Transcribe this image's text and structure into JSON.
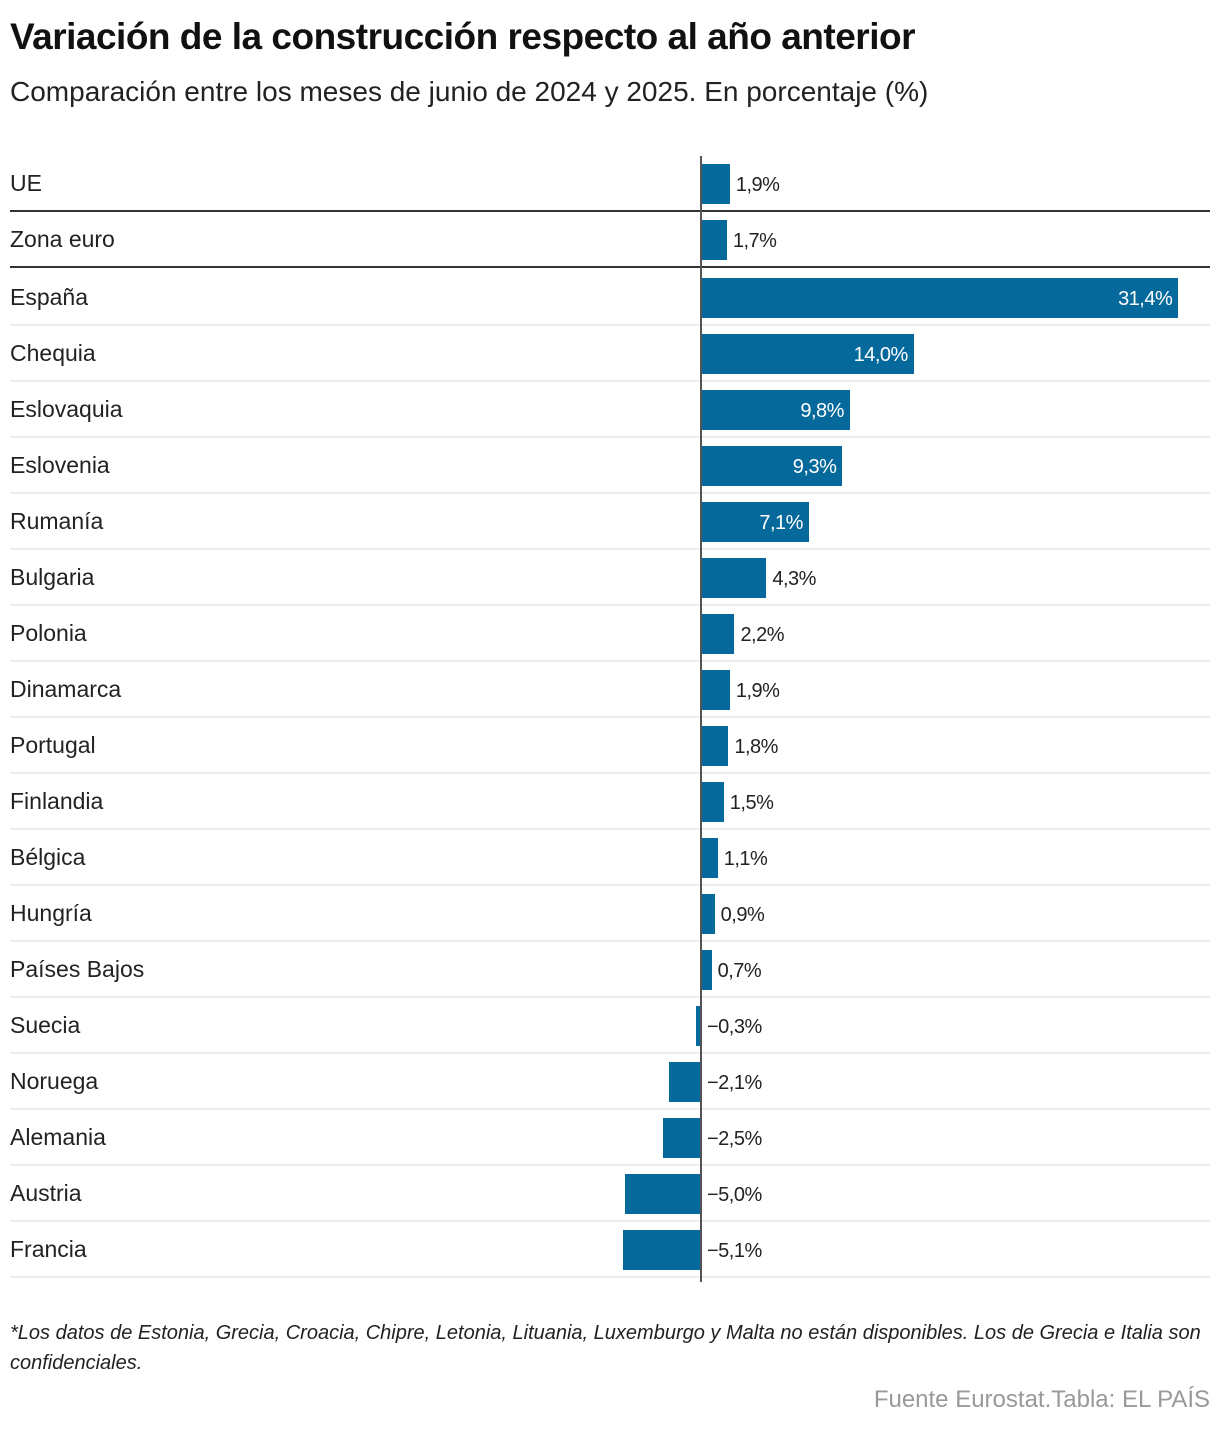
{
  "title": "Variación de la construcción respecto al año anterior",
  "subtitle": "Comparación entre los meses de junio de 2024 y 2025. En porcentaje (%)",
  "note": "*Los datos de Estonia, Grecia, Croacia, Chipre, Letonia, Lituania, Luxemburgo y Malta no están disponibles. Los de Grecia e Italia son confidenciales.",
  "source": "Fuente Eurostat.Tabla: EL PAÍS",
  "colors": {
    "bar": "#06699c"
  },
  "chart_data": {
    "type": "bar",
    "orientation": "horizontal",
    "title": "Variación de la construcción respecto al año anterior",
    "subtitle": "Comparación entre los meses de junio de 2024 y 2025. En porcentaje (%)",
    "categories": [
      "UE",
      "Zona euro",
      "España",
      "Chequia",
      "Eslovaquia",
      "Eslovenia",
      "Rumanía",
      "Bulgaria",
      "Polonia",
      "Dinamarca",
      "Portugal",
      "Finlandia",
      "Bélgica",
      "Hungría",
      "Países Bajos",
      "Suecia",
      "Noruega",
      "Alemania",
      "Austria",
      "Francia"
    ],
    "values": [
      1.9,
      1.7,
      31.4,
      14.0,
      9.8,
      9.3,
      7.1,
      4.3,
      2.2,
      1.9,
      1.8,
      1.5,
      1.1,
      0.9,
      0.7,
      -0.3,
      -2.1,
      -2.5,
      -5.0,
      -5.1
    ],
    "labels": [
      "1,9%",
      "1,7%",
      "31,4%",
      "14,0%",
      "9,8%",
      "9,3%",
      "7,1%",
      "4,3%",
      "2,2%",
      "1,9%",
      "1,8%",
      "1,5%",
      "1,1%",
      "0,9%",
      "0,7%",
      "−0,3%",
      "−2,1%",
      "−2,5%",
      "−5,0%",
      "−5,1%"
    ],
    "xlim": [
      -5.1,
      31.4
    ],
    "grid": false
  }
}
